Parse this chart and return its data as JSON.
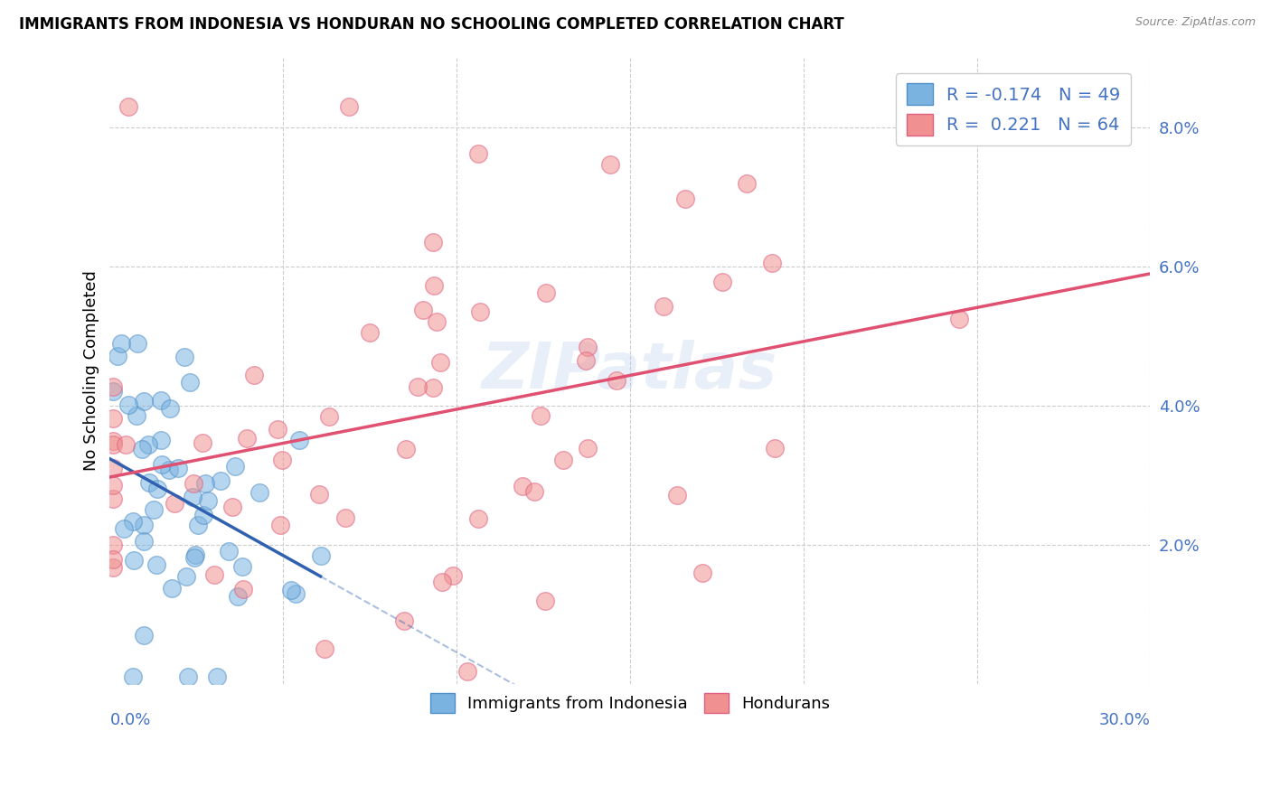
{
  "title": "IMMIGRANTS FROM INDONESIA VS HONDURAN NO SCHOOLING COMPLETED CORRELATION CHART",
  "source": "Source: ZipAtlas.com",
  "ylabel": "No Schooling Completed",
  "xlim": [
    0.0,
    0.3
  ],
  "ylim": [
    0.0,
    0.09
  ],
  "blue_color": "#7ab3e0",
  "pink_color": "#f09090",
  "blue_edge_color": "#5090c8",
  "pink_edge_color": "#e06080",
  "blue_line_color": "#3060b0",
  "pink_line_color": "#e05070",
  "watermark": "ZIPatlas",
  "ytick_vals": [
    0.0,
    0.02,
    0.04,
    0.06,
    0.08
  ],
  "ytick_labels": [
    "",
    "2.0%",
    "4.0%",
    "6.0%",
    "8.0%"
  ],
  "grid_color": "#cccccc",
  "indo_seed": 77,
  "hond_seed": 88,
  "legend_r_color": "#4472c4",
  "legend_n_color": "#4472c4"
}
